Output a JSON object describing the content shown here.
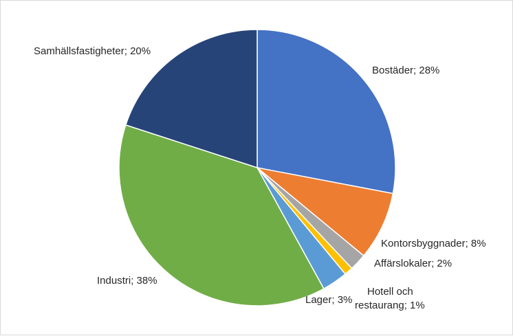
{
  "chart_data": {
    "type": "pie",
    "title": "",
    "start_angle_deg": 0,
    "direction": "clockwise",
    "legend": "none",
    "slices": [
      {
        "category": "Bostäder",
        "value": 28,
        "label_lines": [
          "Bostäder; 28%"
        ],
        "color": "#4472c4"
      },
      {
        "category": "Kontorsbyggnader",
        "value": 8,
        "label_lines": [
          "Kontorsbyggnader; 8%"
        ],
        "color": "#ed7d31"
      },
      {
        "category": "Affärslokaler",
        "value": 2,
        "label_lines": [
          "Affärslokaler; 2%"
        ],
        "color": "#a5a5a5"
      },
      {
        "category": "Hotell och restaurang",
        "value": 1,
        "label_lines": [
          "Hotell och",
          "restaurang; 1%"
        ],
        "color": "#ffc000"
      },
      {
        "category": "Lager",
        "value": 3,
        "label_lines": [
          "Lager; 3%"
        ],
        "color": "#5b9bd5"
      },
      {
        "category": "Industri",
        "value": 38,
        "label_lines": [
          "Industri; 38%"
        ],
        "color": "#70ad47"
      },
      {
        "category": "Samhällsfastigheter",
        "value": 20,
        "label_lines": [
          "Samhällsfastigheter; 20%"
        ],
        "color": "#264478"
      }
    ]
  }
}
